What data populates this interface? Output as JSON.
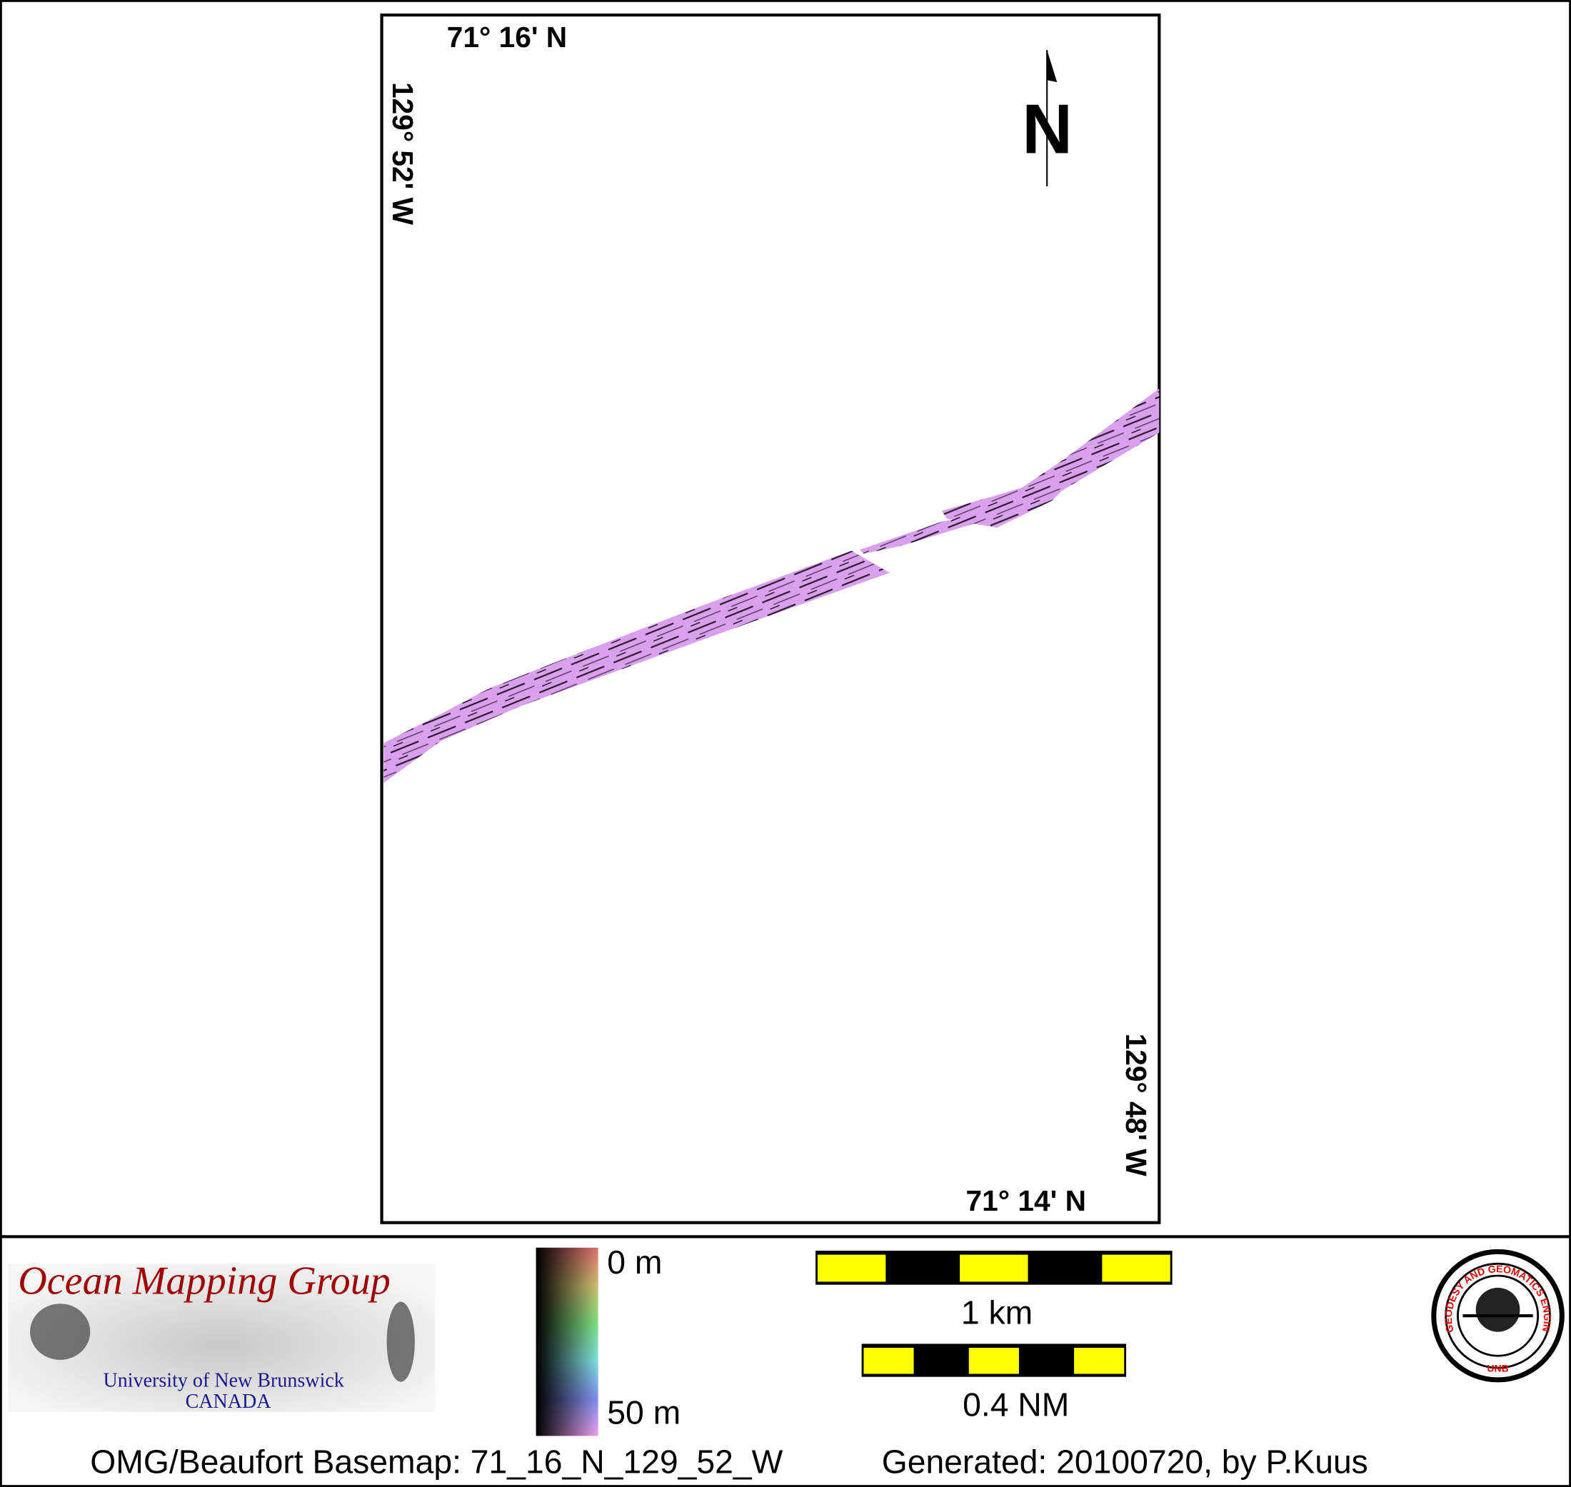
{
  "map": {
    "corner_top_lat": "71° 16' N",
    "corner_left_lon": "129° 52' W",
    "corner_bottom_lat": "71° 14' N",
    "corner_right_lon": "129° 48' W",
    "north_label": "N",
    "swath_color": "#d9a0ee"
  },
  "legend": {
    "logo": {
      "title": "Ocean Mapping Group",
      "line1": "University of New Brunswick",
      "line2": "CANADA",
      "title_color": "#a00000",
      "subtitle_color": "#1a1a8c"
    },
    "colorbar": {
      "top_label": "0 m",
      "bottom_label": "50 m"
    },
    "scale_km": {
      "label": "1 km",
      "colors": [
        "#ffff00",
        "#000000"
      ]
    },
    "scale_nm": {
      "label": "0.4 NM"
    },
    "seal": {
      "text": "GEODESY AND GEOMATICS ENGINEERING",
      "bottom": "UNB",
      "color": "#e00000"
    }
  },
  "footer": {
    "basemap": "OMG/Beaufort Basemap: 71_16_N_129_52_W",
    "generated": "Generated: 20100720, by P.Kuus"
  }
}
